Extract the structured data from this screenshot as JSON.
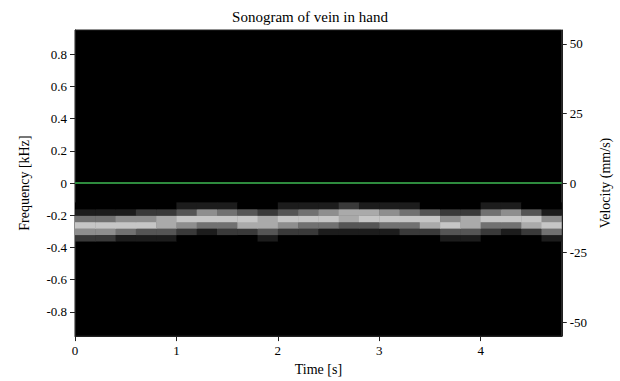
{
  "chart_data": {
    "type": "heatmap",
    "title": "Sonogram of vein in hand",
    "x_label": "Time [s]",
    "y_label": "Frequency [kHz]",
    "y2_label": "Velocity (mm/s)",
    "xlim": [
      0,
      4.8
    ],
    "xticks": [
      0,
      1,
      2,
      3,
      4
    ],
    "ylim": [
      -0.95,
      0.95
    ],
    "yticks": [
      -0.8,
      -0.6,
      -0.4,
      -0.2,
      0,
      0.2,
      0.4,
      0.6,
      0.8
    ],
    "y2lim": [
      -55,
      55
    ],
    "y2ticks": [
      -50,
      -25,
      0,
      25,
      50
    ],
    "grid": false,
    "time_bins": [
      0,
      0.2,
      0.4,
      0.6,
      0.8,
      1.0,
      1.2,
      1.4,
      1.6,
      1.8,
      2.0,
      2.2,
      2.4,
      2.6,
      2.8,
      3.0,
      3.2,
      3.4,
      3.6,
      3.8,
      4.0,
      4.2,
      4.4,
      4.6,
      4.8
    ],
    "freq_bins": [
      -0.36,
      -0.32,
      -0.28,
      -0.24,
      -0.2,
      -0.16,
      -0.12
    ],
    "intensity_range": [
      0,
      9
    ],
    "intensity": [
      [
        2,
        2,
        1,
        1,
        1,
        0,
        0,
        0,
        0,
        1,
        0,
        0,
        0,
        0,
        0,
        0,
        0,
        0,
        1,
        1,
        0,
        0,
        0,
        1
      ],
      [
        5,
        5,
        4,
        3,
        3,
        2,
        1,
        2,
        2,
        3,
        2,
        2,
        1,
        1,
        1,
        1,
        2,
        2,
        3,
        3,
        2,
        1,
        2,
        4
      ],
      [
        7,
        7,
        7,
        7,
        6,
        5,
        4,
        4,
        6,
        6,
        5,
        4,
        4,
        3,
        3,
        4,
        4,
        6,
        7,
        6,
        4,
        4,
        6,
        7
      ],
      [
        4,
        4,
        5,
        5,
        6,
        7,
        7,
        7,
        7,
        6,
        7,
        7,
        7,
        6,
        7,
        7,
        7,
        7,
        5,
        6,
        7,
        7,
        7,
        5
      ],
      [
        1,
        1,
        1,
        2,
        2,
        3,
        5,
        4,
        3,
        2,
        3,
        4,
        5,
        6,
        6,
        5,
        4,
        3,
        2,
        2,
        4,
        5,
        3,
        1
      ],
      [
        0,
        0,
        0,
        0,
        0,
        1,
        1,
        1,
        0,
        0,
        1,
        1,
        1,
        2,
        1,
        1,
        1,
        0,
        0,
        0,
        1,
        1,
        0,
        0
      ]
    ],
    "zero_line": {
      "y": 0,
      "color": "#2e8b3e"
    }
  }
}
